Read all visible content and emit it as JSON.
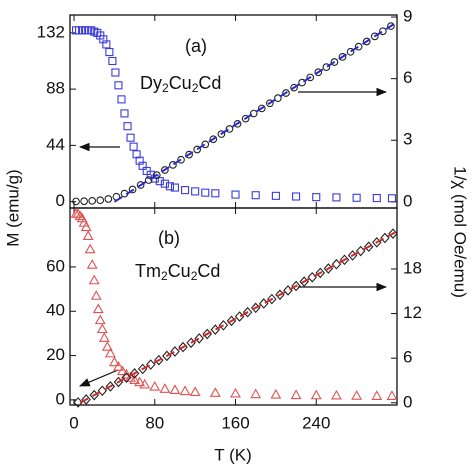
{
  "chart_data": [
    {
      "type": "scatter",
      "ylabel": "M (emu/g)",
      "y2label": "1/χ (mol Oe/emu)",
      "annotations": [
        {
          "text": "(a)"
        },
        {
          "parts": [
            "Dy",
            "2",
            "Cu",
            "2",
            "Cd"
          ]
        }
      ],
      "xlim": [
        -4,
        320
      ],
      "xticks": [
        0,
        80,
        160,
        240
      ],
      "xtick_labels": false,
      "ylim": [
        -5,
        146
      ],
      "yticks": [
        0,
        44,
        88,
        132
      ],
      "y2lim": [
        -0.3,
        9.1
      ],
      "y2ticks": [
        0,
        3,
        6,
        9
      ],
      "series": [
        {
          "marker": "square",
          "color": "#3b3bdc",
          "axis": "y",
          "x": [
            2,
            5,
            8,
            11,
            14,
            17,
            20,
            23,
            26,
            29,
            32,
            35,
            38,
            41,
            44,
            47,
            50,
            53,
            56,
            59,
            62,
            65,
            68,
            72,
            76,
            80,
            85,
            90,
            95,
            100,
            110,
            120,
            130,
            140,
            160,
            180,
            200,
            220,
            240,
            260,
            280,
            300,
            315
          ],
          "values": [
            134,
            134,
            134,
            134,
            134,
            134,
            133,
            132,
            130,
            127,
            123,
            117,
            110,
            101,
            91,
            80,
            69,
            59,
            50,
            43,
            37,
            32,
            28,
            24,
            21,
            18,
            16,
            14,
            12,
            11,
            9,
            8,
            7,
            6.5,
            5.5,
            5,
            4.5,
            4,
            3.5,
            3.3,
            3,
            2.8,
            2.6
          ]
        },
        {
          "marker": "circle",
          "color": "#222222",
          "axis": "y2",
          "x": [
            2,
            10,
            18,
            26,
            34,
            42,
            50,
            58,
            66,
            74,
            82,
            90,
            98,
            106,
            114,
            122,
            130,
            138,
            146,
            154,
            162,
            170,
            178,
            186,
            194,
            202,
            210,
            218,
            226,
            234,
            242,
            250,
            258,
            266,
            274,
            282,
            290,
            298,
            306,
            314
          ],
          "values": [
            0.02,
            0.03,
            0.05,
            0.08,
            0.14,
            0.25,
            0.4,
            0.6,
            0.82,
            1.06,
            1.3,
            1.55,
            1.8,
            2.05,
            2.3,
            2.55,
            2.8,
            3.05,
            3.3,
            3.55,
            3.8,
            4.05,
            4.3,
            4.55,
            4.8,
            5.05,
            5.3,
            5.56,
            5.81,
            6.06,
            6.31,
            6.56,
            6.81,
            7.06,
            7.31,
            7.56,
            7.81,
            8.06,
            8.31,
            8.56
          ]
        },
        {
          "mode": "line",
          "color": "#2a2acc",
          "axis": "y2",
          "x": [
            40,
            318
          ],
          "values": [
            0,
            8.69
          ]
        }
      ]
    },
    {
      "type": "scatter",
      "xlabel": "T (K)",
      "annotations": [
        {
          "text": "(b)"
        },
        {
          "parts": [
            "Tm",
            "2",
            "Cu",
            "2",
            "Cd"
          ]
        }
      ],
      "xlim": [
        -4,
        320
      ],
      "xticks": [
        0,
        80,
        160,
        240
      ],
      "xtick_labels": true,
      "ylim": [
        -2.3,
        86.6
      ],
      "yticks": [
        0,
        20,
        40,
        60
      ],
      "y2lim": [
        -0.3,
        26.2
      ],
      "y2ticks": [
        0,
        6,
        12,
        18
      ],
      "series": [
        {
          "marker": "triangle",
          "color": "#e05252",
          "axis": "y",
          "x": [
            2,
            4,
            6,
            8,
            10,
            12,
            14,
            16,
            18,
            20,
            22,
            24,
            26,
            28,
            30,
            33,
            36,
            40,
            44,
            48,
            52,
            56,
            60,
            65,
            70,
            80,
            90,
            100,
            110,
            120,
            140,
            160,
            180,
            200,
            220,
            240,
            260,
            280,
            300,
            315
          ],
          "values": [
            84,
            84,
            83,
            82,
            80,
            78,
            74,
            68,
            61,
            54,
            47,
            41,
            36,
            32,
            28,
            24,
            21,
            17,
            15,
            13,
            11.5,
            10,
            9,
            8,
            7,
            6,
            5,
            4.5,
            4,
            3.6,
            3.2,
            2.9,
            2.6,
            2.4,
            2.2,
            2.1,
            2,
            1.9,
            1.8,
            1.8
          ]
        },
        {
          "marker": "diamond",
          "color": "#222222",
          "axis": "y2",
          "x": [
            4,
            12,
            20,
            28,
            36,
            44,
            52,
            60,
            68,
            76,
            84,
            92,
            100,
            108,
            116,
            124,
            132,
            140,
            148,
            156,
            164,
            172,
            180,
            188,
            196,
            204,
            212,
            220,
            228,
            236,
            244,
            252,
            260,
            268,
            276,
            284,
            292,
            300,
            308,
            316
          ],
          "values": [
            0.05,
            0.44,
            1.03,
            1.61,
            2.2,
            2.79,
            3.38,
            3.96,
            4.55,
            5.14,
            5.73,
            6.31,
            6.9,
            7.49,
            8.07,
            8.66,
            9.25,
            9.84,
            10.42,
            11.01,
            11.6,
            12.18,
            12.77,
            13.36,
            13.95,
            14.53,
            15.12,
            15.71,
            16.3,
            16.88,
            17.47,
            18.06,
            18.64,
            19.23,
            19.82,
            20.41,
            20.99,
            21.58,
            22.17,
            22.75
          ]
        },
        {
          "mode": "line",
          "color": "#cc2a2a",
          "axis": "y2",
          "x": [
            6,
            318
          ],
          "values": [
            0,
            22.9
          ]
        }
      ]
    }
  ]
}
